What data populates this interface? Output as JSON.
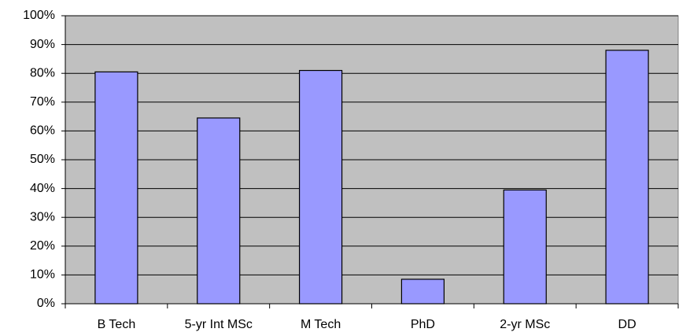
{
  "chart_data": {
    "type": "bar",
    "categories": [
      "B Tech",
      "5-yr Int MSc",
      "M Tech",
      "PhD",
      "2-yr MSc",
      "DD"
    ],
    "values": [
      80.5,
      64.5,
      81,
      8.5,
      39.5,
      88
    ],
    "color": "#9999ff",
    "ylim": [
      0,
      100
    ],
    "yticks": [
      {
        "value": 0,
        "label": "0%"
      },
      {
        "value": 10,
        "label": "10%"
      },
      {
        "value": 20,
        "label": "20%"
      },
      {
        "value": 30,
        "label": "30%"
      },
      {
        "value": 40,
        "label": "40%"
      },
      {
        "value": 50,
        "label": "50%"
      },
      {
        "value": 60,
        "label": "60%"
      },
      {
        "value": 70,
        "label": "70%"
      },
      {
        "value": 80,
        "label": "80%"
      },
      {
        "value": 90,
        "label": "90%"
      },
      {
        "value": 100,
        "label": "100%"
      }
    ],
    "grid": true
  }
}
